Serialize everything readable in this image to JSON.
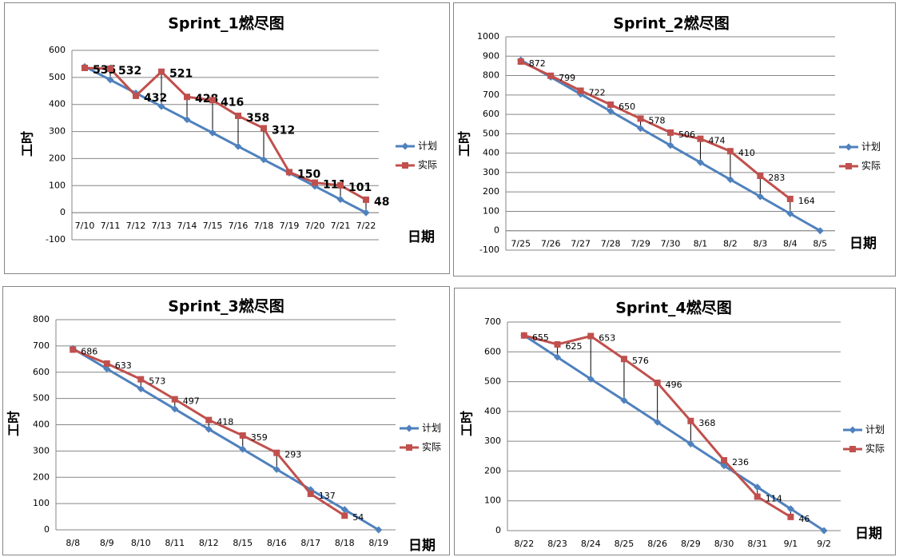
{
  "chart_data": [
    {
      "type": "line",
      "title": "Sprint_1燃尽图",
      "y_label": "工时",
      "x_label": "日期",
      "categories": [
        "7/10",
        "7/11",
        "7/12",
        "7/13",
        "7/14",
        "7/15",
        "7/16",
        "7/18",
        "7/19",
        "7/20",
        "7/21",
        "7/22"
      ],
      "series": [
        {
          "name": "计划",
          "color": "#4f81bd",
          "marker": "diamond",
          "values": [
            540,
            491,
            442,
            393,
            344,
            295,
            245,
            196,
            147,
            98,
            49,
            0
          ]
        },
        {
          "name": "实际",
          "color": "#c0504d",
          "marker": "square",
          "labels": true,
          "values": [
            535,
            532,
            432,
            521,
            428,
            416,
            358,
            312,
            150,
            111,
            101,
            48
          ]
        }
      ],
      "ylim": [
        -100,
        600
      ],
      "yticks": [
        -100,
        0,
        100,
        200,
        300,
        400,
        500,
        600
      ],
      "grid": true,
      "legend": "right",
      "high_low_lines": true,
      "label_color": "#3aae3a",
      "label_bold": true
    },
    {
      "type": "line",
      "title": "Sprint_2燃尽图",
      "y_label": "工时",
      "x_label": "日期",
      "categories": [
        "7/25",
        "7/26",
        "7/27",
        "7/28",
        "7/29",
        "7/30",
        "8/1",
        "8/2",
        "8/3",
        "8/4",
        "8/5"
      ],
      "series": [
        {
          "name": "计划",
          "color": "#4f81bd",
          "marker": "diamond",
          "values": [
            880,
            792,
            704,
            616,
            528,
            440,
            352,
            264,
            176,
            88,
            0
          ]
        },
        {
          "name": "实际",
          "color": "#c0504d",
          "marker": "square",
          "labels": true,
          "values": [
            872,
            799,
            722,
            650,
            578,
            506,
            474,
            410,
            283,
            164,
            null
          ]
        }
      ],
      "ylim": [
        -100,
        1000
      ],
      "yticks": [
        -100,
        0,
        100,
        200,
        300,
        400,
        500,
        600,
        700,
        800,
        900,
        1000
      ],
      "grid": true,
      "legend": "right",
      "high_low_lines": true,
      "label_color": "#000000",
      "label_bold": false
    },
    {
      "type": "line",
      "title": "Sprint_3燃尽图",
      "y_label": "工时",
      "x_label": "日期",
      "categories": [
        "8/8",
        "8/9",
        "8/10",
        "8/11",
        "8/12",
        "8/15",
        "8/16",
        "8/17",
        "8/18",
        "8/19"
      ],
      "series": [
        {
          "name": "计划",
          "color": "#4f81bd",
          "marker": "diamond",
          "values": [
            690,
            613,
            537,
            460,
            383,
            307,
            230,
            153,
            77,
            0
          ]
        },
        {
          "name": "实际",
          "color": "#c0504d",
          "marker": "square",
          "labels": true,
          "values": [
            686,
            633,
            573,
            497,
            418,
            359,
            293,
            137,
            54,
            null
          ]
        }
      ],
      "ylim": [
        0,
        800
      ],
      "yticks": [
        0,
        100,
        200,
        300,
        400,
        500,
        600,
        700,
        800
      ],
      "grid": true,
      "legend": "right",
      "high_low_lines": true,
      "label_color": "#000000",
      "label_bold": false
    },
    {
      "type": "line",
      "title": "Sprint_4燃尽图",
      "y_label": "工时",
      "x_label": "日期",
      "categories": [
        "8/22",
        "8/23",
        "8/24",
        "8/25",
        "8/26",
        "8/29",
        "8/30",
        "8/31",
        "9/1",
        "9/2"
      ],
      "series": [
        {
          "name": "计划",
          "color": "#4f81bd",
          "marker": "diamond",
          "values": [
            655,
            582,
            509,
            437,
            364,
            291,
            218,
            146,
            73,
            0
          ]
        },
        {
          "name": "实际",
          "color": "#c0504d",
          "marker": "square",
          "labels": true,
          "values": [
            655,
            625,
            653,
            576,
            496,
            368,
            236,
            114,
            46,
            null
          ]
        }
      ],
      "ylim": [
        0,
        700
      ],
      "yticks": [
        0,
        100,
        200,
        300,
        400,
        500,
        600,
        700
      ],
      "grid": true,
      "legend": "right",
      "high_low_lines": true,
      "label_color": "#000000",
      "label_bold": false
    }
  ]
}
